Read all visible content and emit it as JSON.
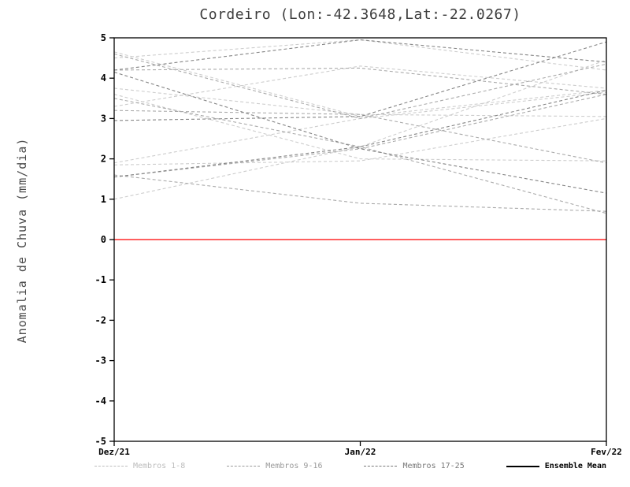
{
  "chart_title": "Cordeiro (Lon:-42.3648,Lat:-22.0267)",
  "chart_data": {
    "type": "line",
    "title": "Cordeiro (Lon:-42.3648,Lat:-22.0267)",
    "xlabel": "",
    "ylabel": "Anomalia de Chuva (mm/dia)",
    "x_categories": [
      "Dez/21",
      "Jan/22",
      "Fev/22"
    ],
    "ylim": [
      -5,
      5
    ],
    "yticks": [
      -5,
      -4,
      -3,
      -2,
      -1,
      0,
      1,
      2,
      3,
      4,
      5
    ],
    "grid": false,
    "zero_line": {
      "value": 0,
      "color": "#ff2a2a"
    },
    "groups": [
      {
        "name": "Membros 1-8",
        "color": "#cdcdcd"
      },
      {
        "name": "Membros 9-16",
        "color": "#aaaaaa"
      },
      {
        "name": "Membros 17-25",
        "color": "#858585"
      }
    ],
    "series": [
      {
        "group": 0,
        "values": [
          4.65,
          3.05,
          3.7
        ]
      },
      {
        "group": 0,
        "values": [
          4.5,
          4.95,
          4.2
        ]
      },
      {
        "group": 0,
        "values": [
          3.75,
          3.1,
          3.05
        ]
      },
      {
        "group": 0,
        "values": [
          3.6,
          2.0,
          1.95
        ]
      },
      {
        "group": 0,
        "values": [
          1.9,
          3.0,
          3.65
        ]
      },
      {
        "group": 0,
        "values": [
          1.85,
          1.95,
          3.0
        ]
      },
      {
        "group": 0,
        "values": [
          1.0,
          2.3,
          4.45
        ]
      },
      {
        "group": 0,
        "values": [
          3.3,
          4.3,
          3.75
        ]
      },
      {
        "group": 1,
        "values": [
          4.2,
          4.25,
          3.6
        ]
      },
      {
        "group": 1,
        "values": [
          3.5,
          2.3,
          0.65
        ]
      },
      {
        "group": 1,
        "values": [
          3.2,
          3.1,
          1.9
        ]
      },
      {
        "group": 1,
        "values": [
          1.6,
          0.9,
          0.7
        ]
      },
      {
        "group": 1,
        "values": [
          1.55,
          2.25,
          3.6
        ]
      },
      {
        "group": 1,
        "values": [
          4.6,
          3.0,
          4.35
        ]
      },
      {
        "group": 2,
        "values": [
          4.15,
          2.25,
          1.15
        ]
      },
      {
        "group": 2,
        "values": [
          2.95,
          3.05,
          4.9
        ]
      },
      {
        "group": 2,
        "values": [
          4.2,
          4.95,
          4.4
        ]
      },
      {
        "group": 2,
        "values": [
          1.55,
          2.3,
          3.7
        ]
      }
    ],
    "legend": [
      {
        "label": "Membros 1-8",
        "color": "#bdbdbd",
        "style": "dashed"
      },
      {
        "label": "Membros 9-16",
        "color": "#9a9a9a",
        "style": "dashed"
      },
      {
        "label": "Membros 17-25",
        "color": "#777777",
        "style": "dashed"
      },
      {
        "label": "Ensemble Mean",
        "color": "#000000",
        "style": "solid"
      }
    ]
  }
}
